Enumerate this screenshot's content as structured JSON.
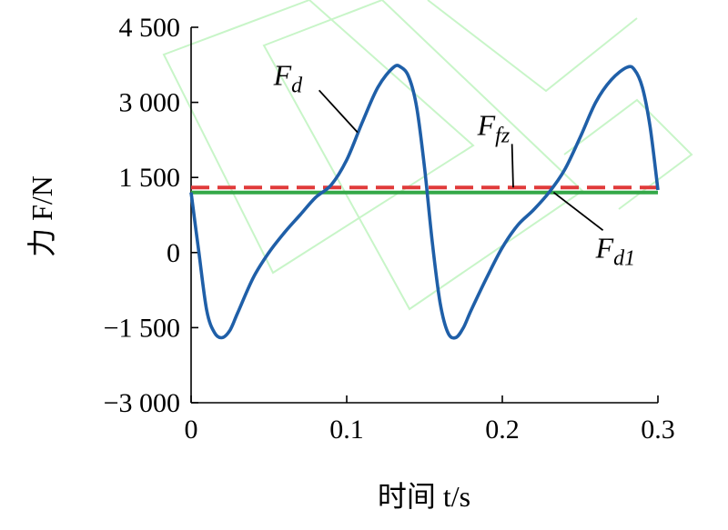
{
  "chart_data": {
    "type": "line",
    "xlabel": "时间 t/s",
    "ylabel": "力 F/N",
    "xlim": [
      0,
      0.3
    ],
    "ylim": [
      -3000,
      4500
    ],
    "x_ticks": [
      {
        "value": 0,
        "label": "0"
      },
      {
        "value": 0.1,
        "label": "0.1"
      },
      {
        "value": 0.2,
        "label": "0.2"
      },
      {
        "value": 0.3,
        "label": "0.3"
      }
    ],
    "y_ticks": [
      {
        "value": 4500,
        "label": "4 500"
      },
      {
        "value": 3000,
        "label": "3 000"
      },
      {
        "value": 1500,
        "label": "1 500"
      },
      {
        "value": 0,
        "label": "0"
      },
      {
        "value": -1500,
        "label": "−1 500"
      },
      {
        "value": -3000,
        "label": "−3 000"
      }
    ],
    "grid": false,
    "series": [
      {
        "name": "Fd",
        "label_main": "F",
        "label_sub": "d",
        "color": "#1f5fa8",
        "style": "solid",
        "x": [
          0,
          0.005,
          0.01,
          0.015,
          0.02,
          0.025,
          0.03,
          0.04,
          0.05,
          0.06,
          0.07,
          0.08,
          0.09,
          0.1,
          0.11,
          0.12,
          0.13,
          0.135,
          0.14,
          0.145,
          0.15,
          0.155,
          0.16,
          0.165,
          0.17,
          0.175,
          0.18,
          0.19,
          0.2,
          0.21,
          0.22,
          0.23,
          0.24,
          0.25,
          0.26,
          0.27,
          0.28,
          0.285,
          0.29,
          0.295,
          0.3
        ],
        "y": [
          1200,
          0,
          -1150,
          -1600,
          -1700,
          -1550,
          -1200,
          -500,
          0,
          400,
          750,
          1100,
          1350,
          1850,
          2600,
          3300,
          3700,
          3700,
          3500,
          2900,
          1700,
          200,
          -1000,
          -1600,
          -1700,
          -1500,
          -1150,
          -500,
          100,
          550,
          850,
          1200,
          1650,
          2300,
          3000,
          3450,
          3700,
          3650,
          3300,
          2500,
          1250
        ]
      },
      {
        "name": "Ffz",
        "label_main": "F",
        "label_sub": "fz",
        "color": "#e03a3a",
        "style": "dashed",
        "x": [
          0,
          0.3
        ],
        "y": [
          1300,
          1300
        ]
      },
      {
        "name": "Fd1",
        "label_main": "F",
        "label_sub": "d1",
        "color": "#34a848",
        "style": "solid",
        "x": [
          0,
          0.3
        ],
        "y": [
          1200,
          1200
        ]
      }
    ],
    "annotations": [
      {
        "series": "Fd",
        "text_x": 0.053,
        "text_y": 3350,
        "point_x": 0.107,
        "point_y": 2400
      },
      {
        "series": "Ffz",
        "text_x": 0.184,
        "text_y": 2350,
        "point_x": 0.207,
        "point_y": 1300
      },
      {
        "series": "Fd1",
        "text_x": 0.26,
        "text_y": -100,
        "point_x": 0.233,
        "point_y": 1200
      }
    ]
  }
}
